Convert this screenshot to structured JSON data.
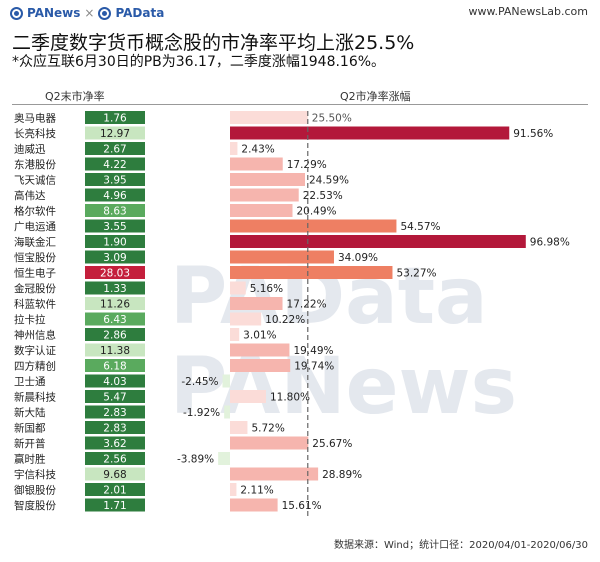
{
  "header": {
    "logo_primary": "PANews",
    "logo_separator": "×",
    "logo_secondary": "PAData",
    "site_url": "www.PANewsLab.com"
  },
  "title": "二季度数字货币概念股的市净率平均上涨25.5%",
  "subtitle": "*众应互联6月30日的PB为36.17，二季度涨幅1948.16%。",
  "source": "数据来源：Wind；统计口径：2020/04/01-2020/06/30",
  "colors": {
    "pb_dark": "#2e7d3e",
    "pb_mid": "#5aaa5e",
    "pb_light": "#c8e6c0",
    "pb_outlier": "#c41f3c",
    "growth_max": "#b3183a",
    "growth_high": "#ee7f63",
    "growth_mid": "#f6b5ae",
    "growth_low": "#fbdcd8",
    "growth_negative": "#e2f2dc"
  },
  "chart_data": {
    "type": "table",
    "columns": [
      "Q2末市净率",
      "Q2市净率涨幅"
    ],
    "average_label": "25.50%",
    "average_growth_pct": 25.5,
    "rows": [
      {
        "name": "奥马电器",
        "pb": "1.76",
        "pb_value": 1.76,
        "growth": "",
        "growth_value": null
      },
      {
        "name": "长亮科技",
        "pb": "12.97",
        "pb_value": 12.97,
        "growth": "91.56%",
        "growth_value": 91.56
      },
      {
        "name": "迪威迅",
        "pb": "2.67",
        "pb_value": 2.67,
        "growth": "2.43%",
        "growth_value": 2.43
      },
      {
        "name": "东港股份",
        "pb": "4.22",
        "pb_value": 4.22,
        "growth": "17.29%",
        "growth_value": 17.29
      },
      {
        "name": "飞天诚信",
        "pb": "3.95",
        "pb_value": 3.95,
        "growth": "24.59%",
        "growth_value": 24.59
      },
      {
        "name": "高伟达",
        "pb": "4.96",
        "pb_value": 4.96,
        "growth": "22.53%",
        "growth_value": 22.53
      },
      {
        "name": "格尔软件",
        "pb": "8.63",
        "pb_value": 8.63,
        "growth": "20.49%",
        "growth_value": 20.49
      },
      {
        "name": "广电运通",
        "pb": "3.55",
        "pb_value": 3.55,
        "growth": "54.57%",
        "growth_value": 54.57
      },
      {
        "name": "海联金汇",
        "pb": "1.90",
        "pb_value": 1.9,
        "growth": "96.98%",
        "growth_value": 96.98
      },
      {
        "name": "恒宝股份",
        "pb": "3.09",
        "pb_value": 3.09,
        "growth": "34.09%",
        "growth_value": 34.09
      },
      {
        "name": "恒生电子",
        "pb": "28.03",
        "pb_value": 28.03,
        "growth": "53.27%",
        "growth_value": 53.27
      },
      {
        "name": "金冠股份",
        "pb": "1.33",
        "pb_value": 1.33,
        "growth": "5.16%",
        "growth_value": 5.16
      },
      {
        "name": "科蓝软件",
        "pb": "11.26",
        "pb_value": 11.26,
        "growth": "17.22%",
        "growth_value": 17.22
      },
      {
        "name": "拉卡拉",
        "pb": "6.43",
        "pb_value": 6.43,
        "growth": "10.22%",
        "growth_value": 10.22
      },
      {
        "name": "神州信息",
        "pb": "2.86",
        "pb_value": 2.86,
        "growth": "3.01%",
        "growth_value": 3.01
      },
      {
        "name": "数字认证",
        "pb": "11.38",
        "pb_value": 11.38,
        "growth": "19.49%",
        "growth_value": 19.49
      },
      {
        "name": "四方精创",
        "pb": "6.18",
        "pb_value": 6.18,
        "growth": "19.74%",
        "growth_value": 19.74
      },
      {
        "name": "卫士通",
        "pb": "4.03",
        "pb_value": 4.03,
        "growth": "-2.45%",
        "growth_value": -2.45
      },
      {
        "name": "新晨科技",
        "pb": "5.47",
        "pb_value": 5.47,
        "growth": "11.80%",
        "growth_value": 11.8
      },
      {
        "name": "新大陆",
        "pb": "2.83",
        "pb_value": 2.83,
        "growth": "-1.92%",
        "growth_value": -1.92
      },
      {
        "name": "新国都",
        "pb": "2.83",
        "pb_value": 2.83,
        "growth": "5.72%",
        "growth_value": 5.72
      },
      {
        "name": "新开普",
        "pb": "3.62",
        "pb_value": 3.62,
        "growth": "25.67%",
        "growth_value": 25.67
      },
      {
        "name": "赢时胜",
        "pb": "2.56",
        "pb_value": 2.56,
        "growth": "-3.89%",
        "growth_value": -3.89
      },
      {
        "name": "宇信科技",
        "pb": "9.68",
        "pb_value": 9.68,
        "growth": "28.89%",
        "growth_value": 28.89
      },
      {
        "name": "御银股份",
        "pb": "2.01",
        "pb_value": 2.01,
        "growth": "2.11%",
        "growth_value": 2.11
      },
      {
        "name": "智度股份",
        "pb": "1.71",
        "pb_value": 1.71,
        "growth": "15.61%",
        "growth_value": 15.61
      }
    ]
  }
}
